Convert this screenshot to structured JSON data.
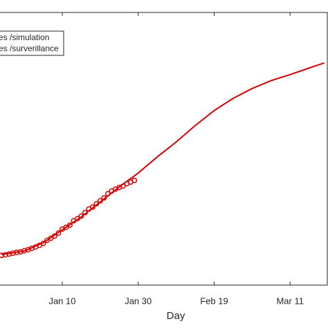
{
  "chart_data": {
    "type": "line",
    "xlabel": "Day",
    "xlim": [
      -6.4,
      79.8
    ],
    "xticks": [
      {
        "value": 10,
        "label": "Jan 10"
      },
      {
        "value": 30,
        "label": "Jan 30"
      },
      {
        "value": 50,
        "label": "Feb 19"
      },
      {
        "value": 70,
        "label": "Mar 11"
      }
    ],
    "ylim": [
      0,
      100
    ],
    "legend": "upper left",
    "series": [
      {
        "name": "es /simulation",
        "color": "#d40000",
        "marker": "none",
        "x": [
          -6,
          0,
          5,
          10,
          15,
          20,
          25,
          30,
          35,
          40,
          45,
          50,
          55,
          60,
          65,
          70,
          75,
          79
        ],
        "values": [
          11.2,
          12.5,
          15.5,
          20.3,
          25,
          30.5,
          36,
          41.1,
          47,
          52.5,
          58.5,
          64.0,
          68.5,
          72.1,
          75,
          77.2,
          79.6,
          81.5
        ]
      },
      {
        "name": "es /surverillance",
        "color": "#d40000",
        "marker": "circle",
        "x": [
          -6,
          -5,
          -4,
          -3,
          -2,
          -1,
          0,
          1,
          2,
          3,
          4,
          5,
          6,
          7,
          8,
          9,
          10,
          11,
          12,
          13,
          14,
          15,
          16,
          17,
          18,
          19,
          20,
          21,
          22,
          23,
          24,
          25,
          26,
          27,
          28,
          29
        ],
        "values": [
          10.9,
          11.1,
          11.4,
          11.7,
          12.0,
          12.2,
          12.6,
          13.0,
          13.5,
          14.0,
          14.6,
          15.3,
          16.4,
          17.2,
          18.0,
          19.1,
          20.5,
          21.2,
          22.0,
          23.6,
          24.4,
          25.3,
          26.6,
          27.9,
          28.6,
          29.8,
          30.9,
          32.0,
          33.5,
          34.5,
          35.2,
          35.8,
          36.3,
          37.2,
          37.8,
          38.4
        ]
      }
    ]
  }
}
